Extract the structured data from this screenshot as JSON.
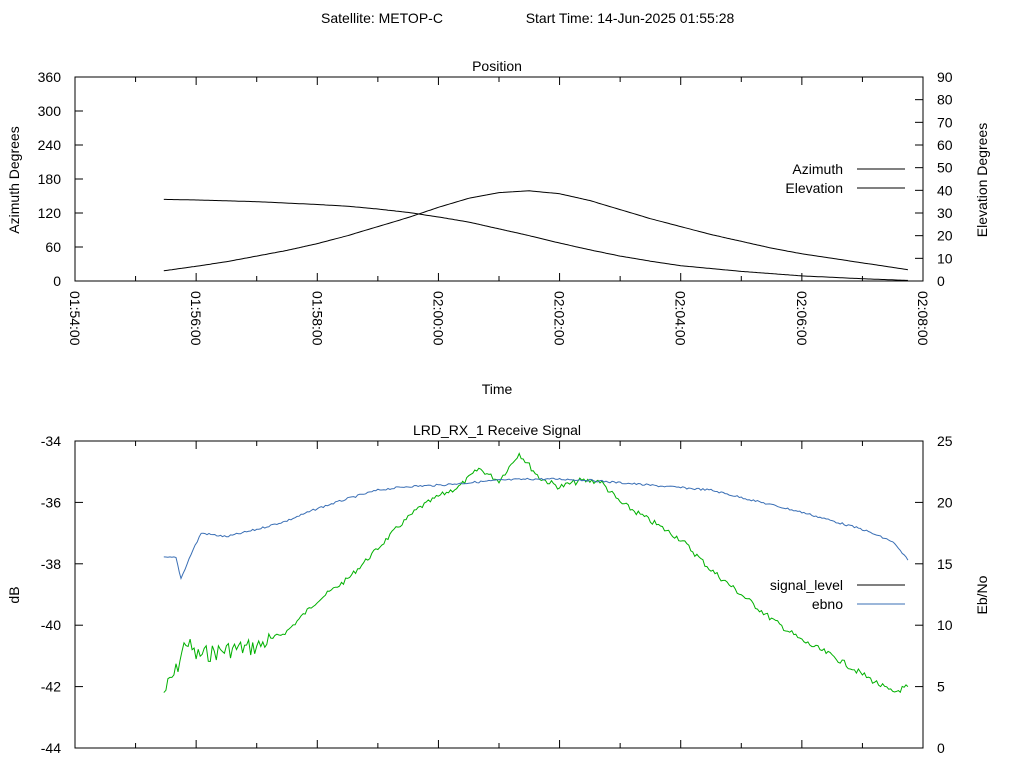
{
  "header": {
    "satellite_text": "Satellite: METOP-C",
    "start_time_text": "Start Time: 14-Jun-2025 01:55:28"
  },
  "colors": {
    "azimuth": "#b0303a",
    "elevation": "#3a6fb5",
    "signal_level": "#00b000",
    "signal_level_legend": "#000000",
    "ebno": "#3a6fb5"
  },
  "chart_data": [
    {
      "type": "line",
      "title": "Position",
      "xlabel": "Time",
      "ylabel": "Azimuth Degrees",
      "y2label": "Elevation Degrees",
      "xlim": [
        "01:54:00",
        "02:08:00"
      ],
      "x_ticks": [
        "01:54:00",
        "01:56:00",
        "01:58:00",
        "02:00:00",
        "02:02:00",
        "02:04:00",
        "02:06:00",
        "02:08:00"
      ],
      "ylim": [
        0,
        360
      ],
      "y_ticks": [
        0,
        60,
        120,
        180,
        240,
        300,
        360
      ],
      "y2lim": [
        0,
        90
      ],
      "y2_ticks": [
        0,
        10,
        20,
        30,
        40,
        50,
        60,
        70,
        80,
        90
      ],
      "legend_position": "right",
      "series": [
        {
          "name": "Azimuth",
          "axis": "y",
          "x": [
            "01:55:28",
            "01:56:00",
            "01:57:00",
            "01:58:00",
            "01:58:30",
            "01:59:00",
            "01:59:30",
            "02:00:00",
            "02:00:30",
            "02:01:00",
            "02:01:30",
            "02:02:00",
            "02:02:30",
            "02:03:00",
            "02:03:30",
            "02:04:00",
            "02:05:00",
            "02:06:00",
            "02:07:00",
            "02:07:45"
          ],
          "values": [
            144,
            143,
            140,
            135,
            132,
            127,
            121,
            113,
            104,
            92,
            80,
            67,
            55,
            44,
            35,
            27,
            17,
            9,
            4,
            1
          ]
        },
        {
          "name": "Elevation",
          "axis": "y2",
          "x": [
            "01:55:28",
            "01:56:00",
            "01:56:30",
            "01:57:00",
            "01:57:30",
            "01:58:00",
            "01:58:30",
            "01:59:00",
            "01:59:30",
            "02:00:00",
            "02:00:30",
            "02:01:00",
            "02:01:30",
            "02:02:00",
            "02:02:30",
            "02:03:00",
            "02:03:30",
            "02:04:00",
            "02:04:30",
            "02:05:00",
            "02:05:30",
            "02:06:00",
            "02:06:30",
            "02:07:00",
            "02:07:45"
          ],
          "values": [
            4.5,
            6.5,
            8.5,
            11,
            13.5,
            16.5,
            20,
            24,
            28,
            32.5,
            36.5,
            39,
            39.8,
            38.5,
            35.5,
            31.5,
            27.5,
            24,
            20.5,
            17.5,
            14.5,
            12,
            10,
            8,
            5
          ]
        }
      ]
    },
    {
      "type": "line",
      "title": "LRD_RX_1 Receive Signal",
      "ylabel": "dB",
      "y2label": "Eb/No",
      "xlim": [
        "01:54:00",
        "02:08:00"
      ],
      "ylim": [
        -44,
        -34
      ],
      "y_ticks": [
        -44,
        -42,
        -40,
        -38,
        -36,
        -34
      ],
      "y2lim": [
        0,
        25
      ],
      "y2_ticks": [
        0,
        5,
        10,
        15,
        20,
        25
      ],
      "legend_position": "right",
      "series": [
        {
          "name": "signal_level",
          "axis": "y",
          "x": [
            "01:55:28",
            "01:55:40",
            "01:55:50",
            "01:56:00",
            "01:56:30",
            "01:57:00",
            "01:57:30",
            "01:58:00",
            "01:58:30",
            "01:59:00",
            "01:59:20",
            "01:59:40",
            "02:00:00",
            "02:00:20",
            "02:00:40",
            "02:01:00",
            "02:01:20",
            "02:01:40",
            "02:02:00",
            "02:02:20",
            "02:02:40",
            "02:03:00",
            "02:03:30",
            "02:04:00",
            "02:04:30",
            "02:05:00",
            "02:05:30",
            "02:06:00",
            "02:06:30",
            "02:07:00",
            "02:07:30",
            "02:07:45"
          ],
          "values": [
            -42.2,
            -41.5,
            -40.5,
            -41.0,
            -40.8,
            -40.7,
            -40.2,
            -39.2,
            -38.5,
            -37.5,
            -36.8,
            -36.2,
            -35.8,
            -35.5,
            -34.9,
            -35.3,
            -34.4,
            -35.2,
            -35.5,
            -35.3,
            -35.3,
            -36.0,
            -36.6,
            -37.2,
            -38.2,
            -39.0,
            -39.8,
            -40.5,
            -41.0,
            -41.6,
            -42.2,
            -42.0
          ]
        },
        {
          "name": "ebno",
          "axis": "y2",
          "x": [
            "01:55:28",
            "01:55:40",
            "01:55:45",
            "01:55:55",
            "01:56:05",
            "01:56:30",
            "01:57:00",
            "01:57:30",
            "01:58:00",
            "01:58:30",
            "01:59:00",
            "01:59:30",
            "02:00:00",
            "02:00:30",
            "02:01:00",
            "02:01:30",
            "02:02:00",
            "02:02:30",
            "02:03:00",
            "02:03:30",
            "02:04:00",
            "02:04:30",
            "02:05:00",
            "02:05:30",
            "02:06:00",
            "02:06:30",
            "02:07:00",
            "02:07:30",
            "02:07:45"
          ],
          "values": [
            15.5,
            15.5,
            13.8,
            15.8,
            17.5,
            17.2,
            17.8,
            18.5,
            19.5,
            20.3,
            21.0,
            21.3,
            21.4,
            21.6,
            21.8,
            21.9,
            21.9,
            21.8,
            21.6,
            21.4,
            21.2,
            21.0,
            20.4,
            19.8,
            19.2,
            18.5,
            17.8,
            16.8,
            15.3
          ]
        }
      ]
    }
  ]
}
